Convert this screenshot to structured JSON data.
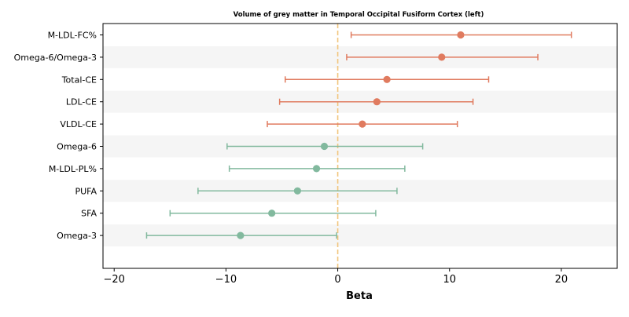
{
  "chart_data": {
    "type": "forest",
    "title": "Volume of grey matter in Temporal Occipital Fusiform Cortex (left)",
    "xlabel": "Beta",
    "ylabel": "",
    "xlim": [
      -21,
      25
    ],
    "xticks": [
      -20,
      -10,
      0,
      10,
      20
    ],
    "xtick_labels": [
      "−20",
      "−10",
      "0",
      "10",
      "20"
    ],
    "reference_line": 0,
    "colors": {
      "positive": "#E07B5F",
      "negative": "#82B99E",
      "reference": "#F2C57C",
      "band": "#F5F5F5",
      "axis": "#000000"
    },
    "categories": [
      "M-LDL-FC%",
      "Omega-6/Omega-3",
      "Total-CE",
      "LDL-CE",
      "VLDL-CE",
      "Omega-6",
      "M-LDL-PL%",
      "PUFA",
      "SFA",
      "Omega-3"
    ],
    "estimates": [
      11.0,
      9.3,
      4.4,
      3.5,
      2.2,
      -1.2,
      -1.9,
      -3.6,
      -5.9,
      -8.7
    ],
    "ci_lower": [
      1.2,
      0.8,
      -4.7,
      -5.2,
      -6.3,
      -9.9,
      -9.7,
      -12.5,
      -15.0,
      -17.1
    ],
    "ci_upper": [
      20.9,
      17.9,
      13.5,
      12.1,
      10.7,
      7.6,
      6.0,
      5.3,
      3.4,
      -0.1
    ]
  }
}
